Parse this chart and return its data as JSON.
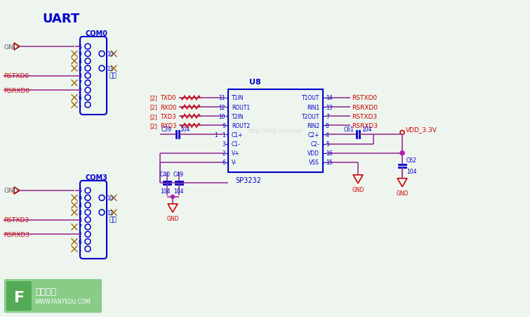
{
  "bg_color": "#eef5ee",
  "title_color": "#0000cc",
  "cc": "#0000cc",
  "rc": "#cc0000",
  "nc": "#996600",
  "purple": "#993399",
  "magenta": "#cc00cc",
  "logo_green": "#66bb66",
  "logo_dark_green": "#44aa44",
  "watermark_color": "#cccccc",
  "title": "UART",
  "com0_label": "COM0",
  "com3_label": "COM3",
  "u8_label": "U8",
  "sp_label": "SP3232",
  "gong_zuo": "公坐",
  "watermark": "http://blog.csdn.net/",
  "logo_text1": "凡亿教育",
  "logo_text2": "WWW.FANYEDU.COM"
}
